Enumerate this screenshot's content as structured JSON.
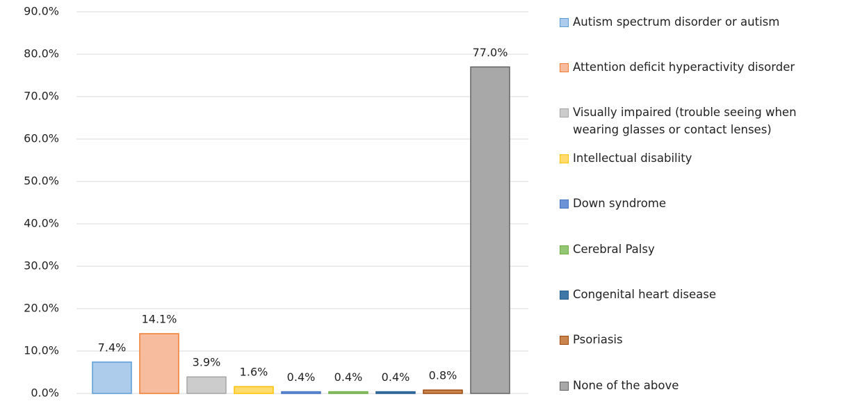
{
  "chart_data": {
    "type": "bar",
    "categories": [
      "Autism spectrum disorder or autism",
      "Attention deficit hyperactivity disorder",
      "Visually impaired (trouble seeing when wearing glasses or contact lenses)",
      "Intellectual disability",
      "Down syndrome",
      "Cerebral Palsy",
      "Congenital heart disease",
      "Psoriasis",
      "None of the above"
    ],
    "values": [
      7.4,
      14.1,
      3.9,
      1.6,
      0.4,
      0.4,
      0.4,
      0.8,
      77.0
    ],
    "value_labels": [
      "7.4%",
      "14.1%",
      "3.9%",
      "1.6%",
      "0.4%",
      "0.4%",
      "0.4%",
      "0.8%",
      "77.0%"
    ],
    "colors": [
      "#adcbeb",
      "#f7bb9e",
      "#cccccc",
      "#ffdb6e",
      "#6b93d6",
      "#93c774",
      "#3e76a6",
      "#c8854e",
      "#a8a8a8"
    ],
    "edge_colors": [
      "#5b9bd5",
      "#ed7d31",
      "#a5a5a5",
      "#ffc000",
      "#4472c4",
      "#70ad47",
      "#255e91",
      "#9e480e",
      "#636363"
    ],
    "ylim": [
      0,
      90
    ],
    "yticks": [
      {
        "value": 0,
        "label": "0.0%"
      },
      {
        "value": 10,
        "label": "10.0%"
      },
      {
        "value": 20,
        "label": "20.0%"
      },
      {
        "value": 30,
        "label": "30.0%"
      },
      {
        "value": 40,
        "label": "40.0%"
      },
      {
        "value": 50,
        "label": "50.0%"
      },
      {
        "value": 60,
        "label": "60.0%"
      },
      {
        "value": 70,
        "label": "70.0%"
      },
      {
        "value": 80,
        "label": "80.0%"
      },
      {
        "value": 90,
        "label": "90.0%"
      }
    ],
    "grid": true,
    "legend": "right"
  }
}
